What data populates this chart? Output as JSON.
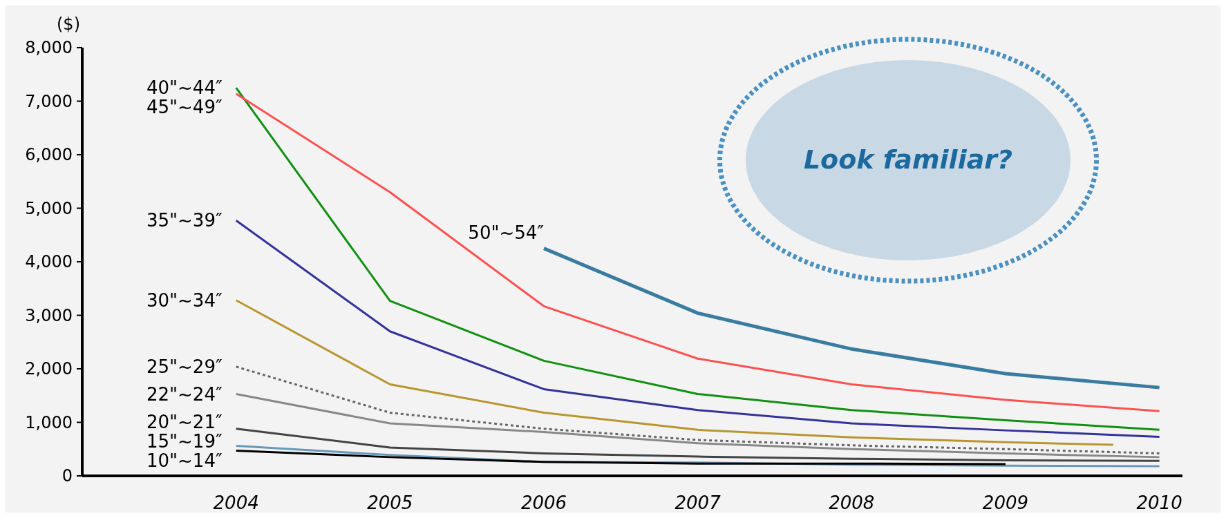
{
  "chart_data": {
    "type": "line",
    "ylabel": "($)",
    "xlim": [
      2003,
      2010.15
    ],
    "xticks": [
      2004,
      2005,
      2006,
      2007,
      2008,
      2009,
      2010
    ],
    "ylim": [
      0,
      8000
    ],
    "yticks": [
      {
        "value": 0,
        "label": "0"
      },
      {
        "value": 1000,
        "label": "1,000"
      },
      {
        "value": 2000,
        "label": "2,000"
      },
      {
        "value": 3000,
        "label": "3,000"
      },
      {
        "value": 4000,
        "label": "4,000"
      },
      {
        "value": 5000,
        "label": "5,000"
      },
      {
        "value": 6000,
        "label": "6,000"
      },
      {
        "value": 7000,
        "label": "7,000"
      },
      {
        "value": 8000,
        "label": "8,000"
      }
    ],
    "grid": false,
    "legend": false,
    "marker": "none",
    "annotations": [
      "Look familiar?"
    ],
    "series": [
      {
        "name": "40\"~44″",
        "color": "#109010",
        "x": [
          2004,
          2005,
          2006,
          2007,
          2008,
          2009,
          2010
        ],
        "values": [
          7250,
          3270,
          2150,
          1530,
          1230,
          1040,
          860
        ]
      },
      {
        "name": "45\"~49″",
        "color": "#ff5050",
        "x": [
          2004,
          2005,
          2006,
          2007,
          2008,
          2009,
          2010
        ],
        "values": [
          7140,
          5300,
          3170,
          2190,
          1710,
          1420,
          1210
        ]
      },
      {
        "name": "35\"~39″",
        "color": "#333399",
        "x": [
          2004,
          2005,
          2006,
          2007,
          2008,
          2009,
          2010
        ],
        "values": [
          4770,
          2700,
          1620,
          1230,
          980,
          850,
          730
        ]
      },
      {
        "name": "30\"~34″",
        "color": "#b8962e",
        "x": [
          2004,
          2005,
          2006,
          2007,
          2008,
          2009,
          2009.7
        ],
        "values": [
          3280,
          1710,
          1180,
          860,
          720,
          630,
          580
        ]
      },
      {
        "name": "25\"~29″",
        "color": "#666666",
        "line_style": "dotted",
        "x": [
          2004,
          2005,
          2006,
          2007,
          2008,
          2009,
          2010
        ],
        "values": [
          2040,
          1180,
          880,
          670,
          570,
          500,
          420
        ]
      },
      {
        "name": "22\"~24″",
        "color": "#888888",
        "x": [
          2004,
          2005,
          2006,
          2007,
          2008,
          2009,
          2010
        ],
        "values": [
          1530,
          980,
          820,
          610,
          500,
          420,
          350
        ]
      },
      {
        "name": "20\"~21″",
        "color": "#444444",
        "x": [
          2004,
          2005,
          2006,
          2007,
          2008,
          2009,
          2010
        ],
        "values": [
          880,
          530,
          420,
          360,
          320,
          290,
          280
        ]
      },
      {
        "name": "15\"~19″",
        "color": "#6699bb",
        "x": [
          2004,
          2005,
          2006,
          2007,
          2008,
          2009,
          2010
        ],
        "values": [
          560,
          390,
          260,
          250,
          210,
          190,
          180
        ]
      },
      {
        "name": "10\"~14″",
        "color": "#000000",
        "x": [
          2004,
          2005,
          2006,
          2007,
          2008,
          2009
        ],
        "values": [
          470,
          350,
          260,
          230,
          230,
          220
        ]
      },
      {
        "name": "50\"~54″",
        "color": "#3a7ca0",
        "x": [
          2006,
          2007,
          2008,
          2009,
          2010
        ],
        "values": [
          4250,
          3040,
          2370,
          1910,
          1650
        ]
      }
    ]
  }
}
